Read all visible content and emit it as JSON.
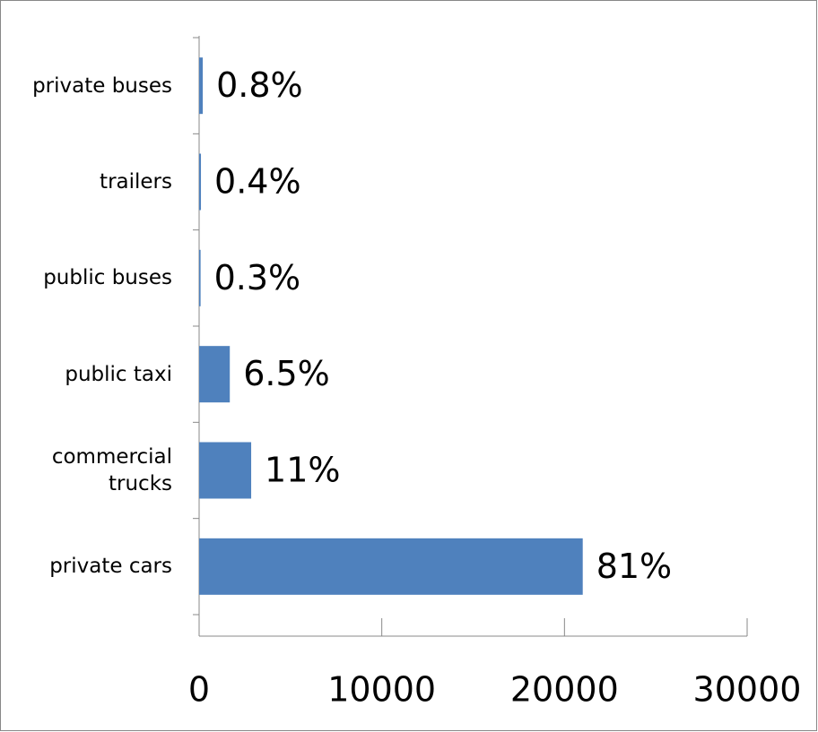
{
  "chart_data": {
    "type": "bar",
    "orientation": "horizontal",
    "categories": [
      "private buses",
      "trailers",
      "public buses",
      "public taxi",
      "commercial trucks",
      "private cars"
    ],
    "values": [
      200,
      100,
      80,
      1680,
      2850,
      21000
    ],
    "data_labels": [
      "0.8%",
      "0.4%",
      "0.3%",
      "6.5%",
      "11%",
      "81%"
    ],
    "color": "#4f81bd",
    "xlim": [
      0,
      30000
    ],
    "xticks": [
      0,
      10000,
      20000,
      30000
    ],
    "grid": false
  }
}
